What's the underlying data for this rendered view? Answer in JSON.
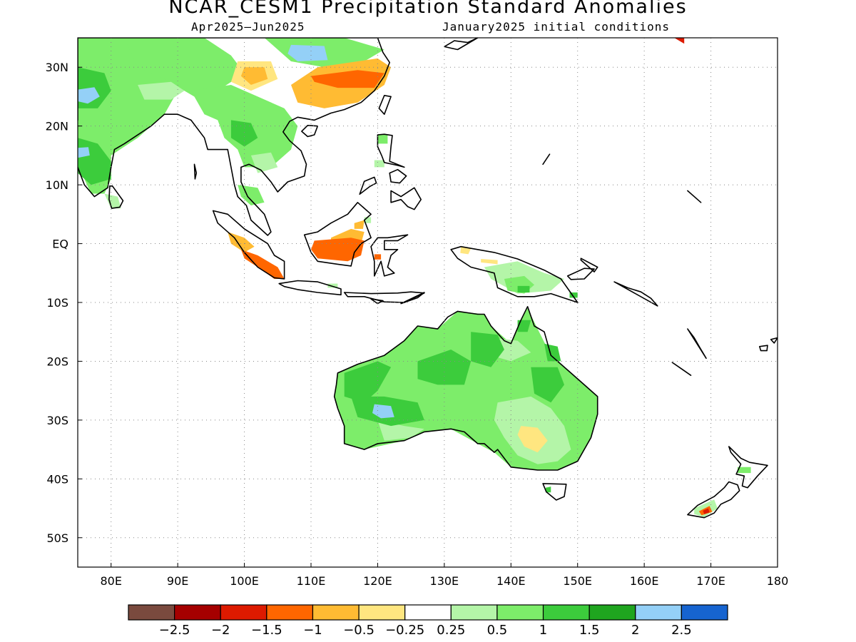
{
  "header": {
    "title": "NCAR_CESM1 Precipitation Standard Anomalies",
    "period": "Apr2025–Jun2025",
    "init": "January2025 initial conditions"
  },
  "map": {
    "lon_range": [
      75,
      180
    ],
    "lat_range": [
      -55,
      35
    ],
    "grid": "dotted",
    "lon_ticks": [
      {
        "value": 80,
        "label": "80E"
      },
      {
        "value": 90,
        "label": "90E"
      },
      {
        "value": 100,
        "label": "100E"
      },
      {
        "value": 110,
        "label": "110E"
      },
      {
        "value": 120,
        "label": "120E"
      },
      {
        "value": 130,
        "label": "130E"
      },
      {
        "value": 140,
        "label": "140E"
      },
      {
        "value": 150,
        "label": "150E"
      },
      {
        "value": 160,
        "label": "160E"
      },
      {
        "value": 170,
        "label": "170E"
      },
      {
        "value": 180,
        "label": "180"
      }
    ],
    "lat_ticks": [
      {
        "value": 30,
        "label": "30N"
      },
      {
        "value": 20,
        "label": "20N"
      },
      {
        "value": 10,
        "label": "10N"
      },
      {
        "value": 0,
        "label": "EQ"
      },
      {
        "value": -10,
        "label": "10S"
      },
      {
        "value": -20,
        "label": "20S"
      },
      {
        "value": -30,
        "label": "30S"
      },
      {
        "value": -40,
        "label": "40S"
      },
      {
        "value": -50,
        "label": "50S"
      }
    ]
  },
  "colorbar": {
    "colors": [
      "#7a4a3e",
      "#a50000",
      "#dd1a00",
      "#ff6600",
      "#ffbb33",
      "#ffe680",
      "#ffffff",
      "#b4f5a8",
      "#7ded6a",
      "#3ccc3c",
      "#1fa51f",
      "#94d0f7",
      "#1664d0"
    ],
    "labels": [
      "−2.5",
      "−2",
      "−1.5",
      "−1",
      "−0.5",
      "−0.25",
      "0.25",
      "0.5",
      "1",
      "1.5",
      "2",
      "2.5"
    ]
  },
  "anomaly_colors": {
    "green_light": "#b4f5a8",
    "green": "#7ded6a",
    "green_mid": "#3ccc3c",
    "green_dark": "#1fa51f",
    "blue_light": "#94d0f7",
    "blue": "#1664d0",
    "yellow": "#ffe680",
    "orange_light": "#ffbb33",
    "orange": "#ff6600",
    "red": "#dd1a00"
  }
}
